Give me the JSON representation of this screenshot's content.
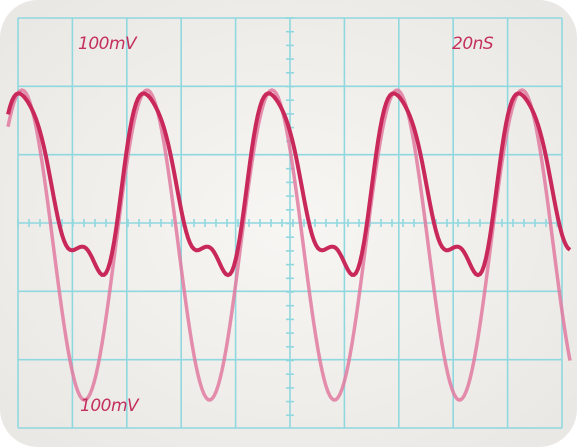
{
  "screen": {
    "top_left_label": "100mV",
    "top_right_label": "20nS",
    "bottom_label": "100mV"
  }
}
